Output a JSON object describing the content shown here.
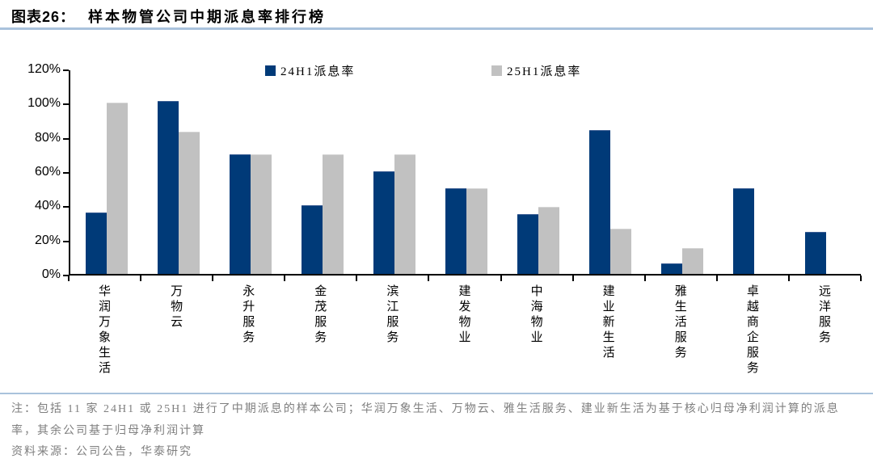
{
  "figure": {
    "label": "图表26：",
    "title": "样本物管公司中期派息率排行榜"
  },
  "chart_data": {
    "type": "bar",
    "title": "样本物管公司中期派息率排行榜",
    "categories": [
      "华润万象生活",
      "万物云",
      "永升服务",
      "金茂服务",
      "滨江服务",
      "建发物业",
      "中海物业",
      "建业新生活",
      "雅生活服务",
      "卓越商企服务",
      "远洋服务"
    ],
    "series": [
      {
        "name": "24H1派息率",
        "color": "#003a78",
        "border": "#3c5f94",
        "values": [
          36,
          101,
          70,
          40,
          60,
          50,
          35,
          84,
          6,
          50,
          24.5
        ]
      },
      {
        "name": "25H1派息率",
        "color": "#c1c1c1",
        "border": "#d6d6d6",
        "values": [
          100,
          83,
          70,
          70,
          70,
          50,
          39,
          26.5,
          15,
          null,
          null
        ]
      }
    ],
    "xlabel": "",
    "ylabel": "",
    "ylim": [
      0,
      120
    ],
    "ytick_step": 20,
    "ytick_labels": [
      "0%",
      "20%",
      "40%",
      "60%",
      "80%",
      "100%",
      "120%"
    ],
    "legend_position": "top-center",
    "grid": false,
    "value_unit": "%"
  },
  "notes": {
    "footnote": "注：包括 11 家 24H1 或 25H1 进行了中期派息的样本公司；华润万象生活、万物云、雅生活服务、建业新生活为基于核心归母净利润计算的派息率，其余公司基于归母净利润计算",
    "source": "资料来源：公司公告，华泰研究"
  },
  "colors": {
    "rule_line": "#a9c2dc",
    "axis": "#000000",
    "note_text": "#7f7f7f",
    "series_24h1": "#003a78",
    "series_25h1": "#c1c1c1"
  }
}
